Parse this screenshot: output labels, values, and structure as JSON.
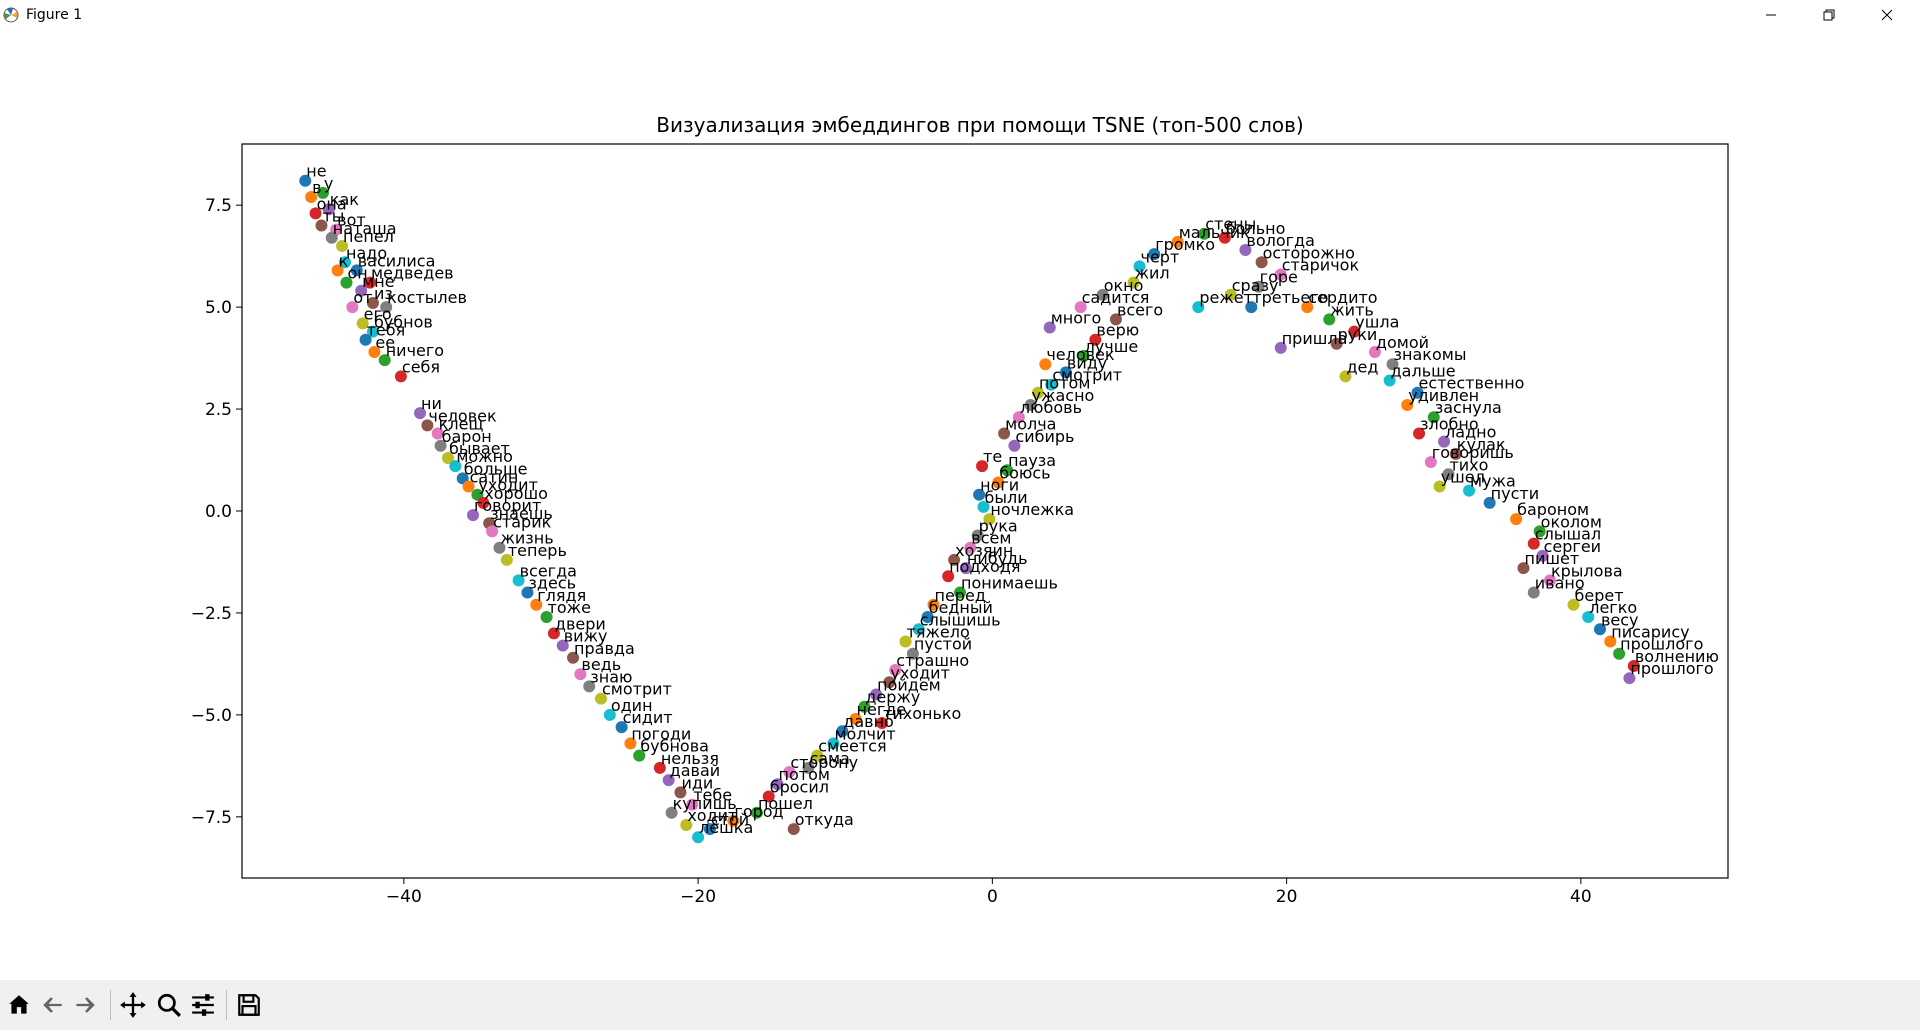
{
  "window": {
    "title": "Figure 1"
  },
  "toolbar": {
    "tools": [
      "home-icon",
      "back-arrow-icon",
      "forward-arrow-icon",
      "pan-icon",
      "zoom-icon",
      "configure-subplots-icon",
      "save-icon"
    ]
  },
  "chart_data": {
    "type": "scatter",
    "title": "Визуализация эмбеддингов при помощи TSNE (топ-500 слов)",
    "xlabel": "",
    "ylabel": "",
    "xlim": [
      -51,
      50
    ],
    "ylim": [
      -9,
      9
    ],
    "xticks": [
      {
        "v": -40,
        "label": "−40"
      },
      {
        "v": -20,
        "label": "−20"
      },
      {
        "v": 0,
        "label": "0"
      },
      {
        "v": 20,
        "label": "20"
      },
      {
        "v": 40,
        "label": "40"
      }
    ],
    "yticks": [
      {
        "v": 7.5,
        "label": "7.5"
      },
      {
        "v": 5.0,
        "label": "5.0"
      },
      {
        "v": 2.5,
        "label": "2.5"
      },
      {
        "v": 0.0,
        "label": "0.0"
      },
      {
        "v": -2.5,
        "label": "−2.5"
      },
      {
        "v": -5.0,
        "label": "−5.0"
      },
      {
        "v": -7.5,
        "label": "−7.5"
      }
    ],
    "grid": false,
    "palette": [
      "#1f77b4",
      "#ff7f0e",
      "#2ca02c",
      "#d62728",
      "#9467bd",
      "#8c564b",
      "#e377c2",
      "#7f7f7f",
      "#bcbd22",
      "#17becf"
    ],
    "points": [
      {
        "x": -46.7,
        "y": 8.1,
        "label": "не"
      },
      {
        "x": -46.3,
        "y": 7.7,
        "label": "в"
      },
      {
        "x": -45.5,
        "y": 7.8,
        "label": "у"
      },
      {
        "x": -46.0,
        "y": 7.3,
        "label": "она"
      },
      {
        "x": -45.1,
        "y": 7.4,
        "label": "как"
      },
      {
        "x": -45.6,
        "y": 7.0,
        "label": "ты"
      },
      {
        "x": -44.6,
        "y": 6.9,
        "label": "вот"
      },
      {
        "x": -44.9,
        "y": 6.7,
        "label": "наташа"
      },
      {
        "x": -44.2,
        "y": 6.5,
        "label": "пепел"
      },
      {
        "x": -44.0,
        "y": 6.1,
        "label": "надо"
      },
      {
        "x": -43.2,
        "y": 5.9,
        "label": "василиса"
      },
      {
        "x": -44.5,
        "y": 5.9,
        "label": "к"
      },
      {
        "x": -43.9,
        "y": 5.6,
        "label": "он"
      },
      {
        "x": -42.3,
        "y": 5.6,
        "label": "медведев"
      },
      {
        "x": -42.9,
        "y": 5.4,
        "label": "мне"
      },
      {
        "x": -42.1,
        "y": 5.1,
        "label": "из"
      },
      {
        "x": -43.5,
        "y": 5.0,
        "label": "от"
      },
      {
        "x": -41.2,
        "y": 5.0,
        "label": "костылев"
      },
      {
        "x": -42.8,
        "y": 4.6,
        "label": "его"
      },
      {
        "x": -42.1,
        "y": 4.4,
        "label": "бубнов"
      },
      {
        "x": -42.6,
        "y": 4.2,
        "label": "тебя"
      },
      {
        "x": -42.0,
        "y": 3.9,
        "label": "ее"
      },
      {
        "x": -41.3,
        "y": 3.7,
        "label": "ничего"
      },
      {
        "x": -40.2,
        "y": 3.3,
        "label": "себя"
      },
      {
        "x": -38.9,
        "y": 2.4,
        "label": "ни"
      },
      {
        "x": -38.4,
        "y": 2.1,
        "label": "человек"
      },
      {
        "x": -37.7,
        "y": 1.9,
        "label": "клещ"
      },
      {
        "x": -37.5,
        "y": 1.6,
        "label": "барон"
      },
      {
        "x": -37.0,
        "y": 1.3,
        "label": "бывает"
      },
      {
        "x": -36.5,
        "y": 1.1,
        "label": "можно"
      },
      {
        "x": -36.0,
        "y": 0.8,
        "label": "больше"
      },
      {
        "x": -35.6,
        "y": 0.6,
        "label": "сатин"
      },
      {
        "x": -35.0,
        "y": 0.4,
        "label": "уходит"
      },
      {
        "x": -34.6,
        "y": 0.2,
        "label": "хорошо"
      },
      {
        "x": -35.3,
        "y": -0.1,
        "label": "говорит"
      },
      {
        "x": -34.2,
        "y": -0.3,
        "label": "знаешь"
      },
      {
        "x": -34.0,
        "y": -0.5,
        "label": "старик"
      },
      {
        "x": -33.5,
        "y": -0.9,
        "label": "жизнь"
      },
      {
        "x": -33.0,
        "y": -1.2,
        "label": "теперь"
      },
      {
        "x": -32.2,
        "y": -1.7,
        "label": "всегда"
      },
      {
        "x": -31.6,
        "y": -2.0,
        "label": "здесь"
      },
      {
        "x": -31.0,
        "y": -2.3,
        "label": "глядя"
      },
      {
        "x": -30.3,
        "y": -2.6,
        "label": "тоже"
      },
      {
        "x": -29.8,
        "y": -3.0,
        "label": "двери"
      },
      {
        "x": -29.2,
        "y": -3.3,
        "label": "вижу"
      },
      {
        "x": -28.5,
        "y": -3.6,
        "label": "правда"
      },
      {
        "x": -28.0,
        "y": -4.0,
        "label": "ведь"
      },
      {
        "x": -27.4,
        "y": -4.3,
        "label": "знаю"
      },
      {
        "x": -26.6,
        "y": -4.6,
        "label": "смотрит"
      },
      {
        "x": -26.0,
        "y": -5.0,
        "label": "один"
      },
      {
        "x": -25.2,
        "y": -5.3,
        "label": "сидит"
      },
      {
        "x": -24.6,
        "y": -5.7,
        "label": "погоди"
      },
      {
        "x": -24.0,
        "y": -6.0,
        "label": "бубнова"
      },
      {
        "x": -22.6,
        "y": -6.3,
        "label": "нельзя"
      },
      {
        "x": -22.0,
        "y": -6.6,
        "label": "давай"
      },
      {
        "x": -21.2,
        "y": -6.9,
        "label": "иди"
      },
      {
        "x": -20.4,
        "y": -7.2,
        "label": "тебе"
      },
      {
        "x": -21.8,
        "y": -7.4,
        "label": "купишь"
      },
      {
        "x": -20.8,
        "y": -7.7,
        "label": "ходит"
      },
      {
        "x": -20.0,
        "y": -8.0,
        "label": "лешка"
      },
      {
        "x": -19.2,
        "y": -7.8,
        "label": "стой"
      },
      {
        "x": -17.6,
        "y": -7.6,
        "label": "город"
      },
      {
        "x": -16.0,
        "y": -7.4,
        "label": "пошел"
      },
      {
        "x": -15.2,
        "y": -7.0,
        "label": "бросил"
      },
      {
        "x": -14.6,
        "y": -6.7,
        "label": "потом"
      },
      {
        "x": -13.5,
        "y": -7.8,
        "label": "откуда"
      },
      {
        "x": -13.8,
        "y": -6.4,
        "label": "сторону"
      },
      {
        "x": -12.5,
        "y": -6.3,
        "label": "сама"
      },
      {
        "x": -11.9,
        "y": -6.0,
        "label": "смеется"
      },
      {
        "x": -10.8,
        "y": -5.7,
        "label": "молчит"
      },
      {
        "x": -10.2,
        "y": -5.4,
        "label": "давно"
      },
      {
        "x": -9.3,
        "y": -5.1,
        "label": "негде"
      },
      {
        "x": -8.7,
        "y": -4.8,
        "label": "держу"
      },
      {
        "x": -7.5,
        "y": -5.2,
        "label": "тихонько"
      },
      {
        "x": -7.9,
        "y": -4.5,
        "label": "пойдем"
      },
      {
        "x": -7.0,
        "y": -4.2,
        "label": "уходит"
      },
      {
        "x": -6.6,
        "y": -3.9,
        "label": "страшно"
      },
      {
        "x": -5.4,
        "y": -3.5,
        "label": "пустой"
      },
      {
        "x": -5.9,
        "y": -3.2,
        "label": "тяжело"
      },
      {
        "x": -5.0,
        "y": -2.9,
        "label": "слышишь"
      },
      {
        "x": -4.4,
        "y": -2.6,
        "label": "бедный"
      },
      {
        "x": -4.0,
        "y": -2.3,
        "label": "перед"
      },
      {
        "x": -2.2,
        "y": -2.0,
        "label": "понимаешь"
      },
      {
        "x": -3.0,
        "y": -1.6,
        "label": "подходя"
      },
      {
        "x": -1.8,
        "y": -1.4,
        "label": "нибудь"
      },
      {
        "x": -2.6,
        "y": -1.2,
        "label": "хозяин"
      },
      {
        "x": -1.5,
        "y": -0.9,
        "label": "всем"
      },
      {
        "x": -1.0,
        "y": -0.6,
        "label": "рука"
      },
      {
        "x": -0.2,
        "y": -0.2,
        "label": "ночлежка"
      },
      {
        "x": -0.6,
        "y": 0.1,
        "label": "были"
      },
      {
        "x": -0.9,
        "y": 0.4,
        "label": "ноги"
      },
      {
        "x": 0.4,
        "y": 0.7,
        "label": "боюсь"
      },
      {
        "x": 1.0,
        "y": 1.0,
        "label": "пауза"
      },
      {
        "x": -0.7,
        "y": 1.1,
        "label": "те"
      },
      {
        "x": 1.5,
        "y": 1.6,
        "label": "сибирь"
      },
      {
        "x": 0.8,
        "y": 1.9,
        "label": "молча"
      },
      {
        "x": 1.8,
        "y": 2.3,
        "label": "любовь"
      },
      {
        "x": 2.6,
        "y": 2.6,
        "label": "ужасно"
      },
      {
        "x": 3.1,
        "y": 2.9,
        "label": "потом"
      },
      {
        "x": 4.0,
        "y": 3.1,
        "label": "смотрит"
      },
      {
        "x": 5.0,
        "y": 3.4,
        "label": "виду"
      },
      {
        "x": 3.6,
        "y": 3.6,
        "label": "человек"
      },
      {
        "x": 6.2,
        "y": 3.8,
        "label": "лучше"
      },
      {
        "x": 7.0,
        "y": 4.2,
        "label": "верю"
      },
      {
        "x": 3.9,
        "y": 4.5,
        "label": "много"
      },
      {
        "x": 8.4,
        "y": 4.7,
        "label": "всего"
      },
      {
        "x": 6.0,
        "y": 5.0,
        "label": "садится"
      },
      {
        "x": 7.5,
        "y": 5.3,
        "label": "окно"
      },
      {
        "x": 9.6,
        "y": 5.6,
        "label": "жил"
      },
      {
        "x": 10.0,
        "y": 6.0,
        "label": "черт"
      },
      {
        "x": 11.0,
        "y": 6.3,
        "label": "громко"
      },
      {
        "x": 12.6,
        "y": 6.6,
        "label": "мальчик"
      },
      {
        "x": 14.4,
        "y": 6.8,
        "label": "стены"
      },
      {
        "x": 15.8,
        "y": 6.7,
        "label": "больно"
      },
      {
        "x": 17.2,
        "y": 6.4,
        "label": "вологда"
      },
      {
        "x": 18.3,
        "y": 6.1,
        "label": "осторожно"
      },
      {
        "x": 19.6,
        "y": 5.8,
        "label": "старичок"
      },
      {
        "x": 18.1,
        "y": 5.5,
        "label": "горе"
      },
      {
        "x": 16.2,
        "y": 5.3,
        "label": "сразу"
      },
      {
        "x": 14.0,
        "y": 5.0,
        "label": "режет"
      },
      {
        "x": 17.6,
        "y": 5.0,
        "label": "третьего"
      },
      {
        "x": 21.4,
        "y": 5.0,
        "label": "сердито"
      },
      {
        "x": 22.9,
        "y": 4.7,
        "label": "жить"
      },
      {
        "x": 24.6,
        "y": 4.4,
        "label": "ушла"
      },
      {
        "x": 19.6,
        "y": 4.0,
        "label": "пришла"
      },
      {
        "x": 23.4,
        "y": 4.1,
        "label": "руки"
      },
      {
        "x": 26.0,
        "y": 3.9,
        "label": "домой"
      },
      {
        "x": 27.2,
        "y": 3.6,
        "label": "знакомы"
      },
      {
        "x": 24.0,
        "y": 3.3,
        "label": "дед"
      },
      {
        "x": 27.0,
        "y": 3.2,
        "label": "дальше"
      },
      {
        "x": 28.9,
        "y": 2.9,
        "label": "естественно"
      },
      {
        "x": 28.2,
        "y": 2.6,
        "label": "удивлен"
      },
      {
        "x": 30.0,
        "y": 2.3,
        "label": "заснула"
      },
      {
        "x": 29.0,
        "y": 1.9,
        "label": "злобно"
      },
      {
        "x": 30.7,
        "y": 1.7,
        "label": "ладно"
      },
      {
        "x": 31.5,
        "y": 1.4,
        "label": "кулак"
      },
      {
        "x": 29.8,
        "y": 1.2,
        "label": "говоришь"
      },
      {
        "x": 31.0,
        "y": 0.9,
        "label": "тихо"
      },
      {
        "x": 30.4,
        "y": 0.6,
        "label": "ушел"
      },
      {
        "x": 32.4,
        "y": 0.5,
        "label": "мужа"
      },
      {
        "x": 33.8,
        "y": 0.2,
        "label": "пусти"
      },
      {
        "x": 35.6,
        "y": -0.2,
        "label": "бароном"
      },
      {
        "x": 37.2,
        "y": -0.5,
        "label": "околом"
      },
      {
        "x": 36.8,
        "y": -0.8,
        "label": "слышал"
      },
      {
        "x": 37.4,
        "y": -1.1,
        "label": "сергеи"
      },
      {
        "x": 36.1,
        "y": -1.4,
        "label": "пишет"
      },
      {
        "x": 37.9,
        "y": -1.7,
        "label": "крылова"
      },
      {
        "x": 36.8,
        "y": -2.0,
        "label": "ивано"
      },
      {
        "x": 39.5,
        "y": -2.3,
        "label": "берет"
      },
      {
        "x": 40.5,
        "y": -2.6,
        "label": "легко"
      },
      {
        "x": 41.3,
        "y": -2.9,
        "label": "весу"
      },
      {
        "x": 42.0,
        "y": -3.2,
        "label": "писарису"
      },
      {
        "x": 42.6,
        "y": -3.5,
        "label": "прошлого"
      },
      {
        "x": 43.6,
        "y": -3.8,
        "label": "волнению"
      },
      {
        "x": 43.3,
        "y": -4.1,
        "label": "прошлого"
      }
    ]
  }
}
